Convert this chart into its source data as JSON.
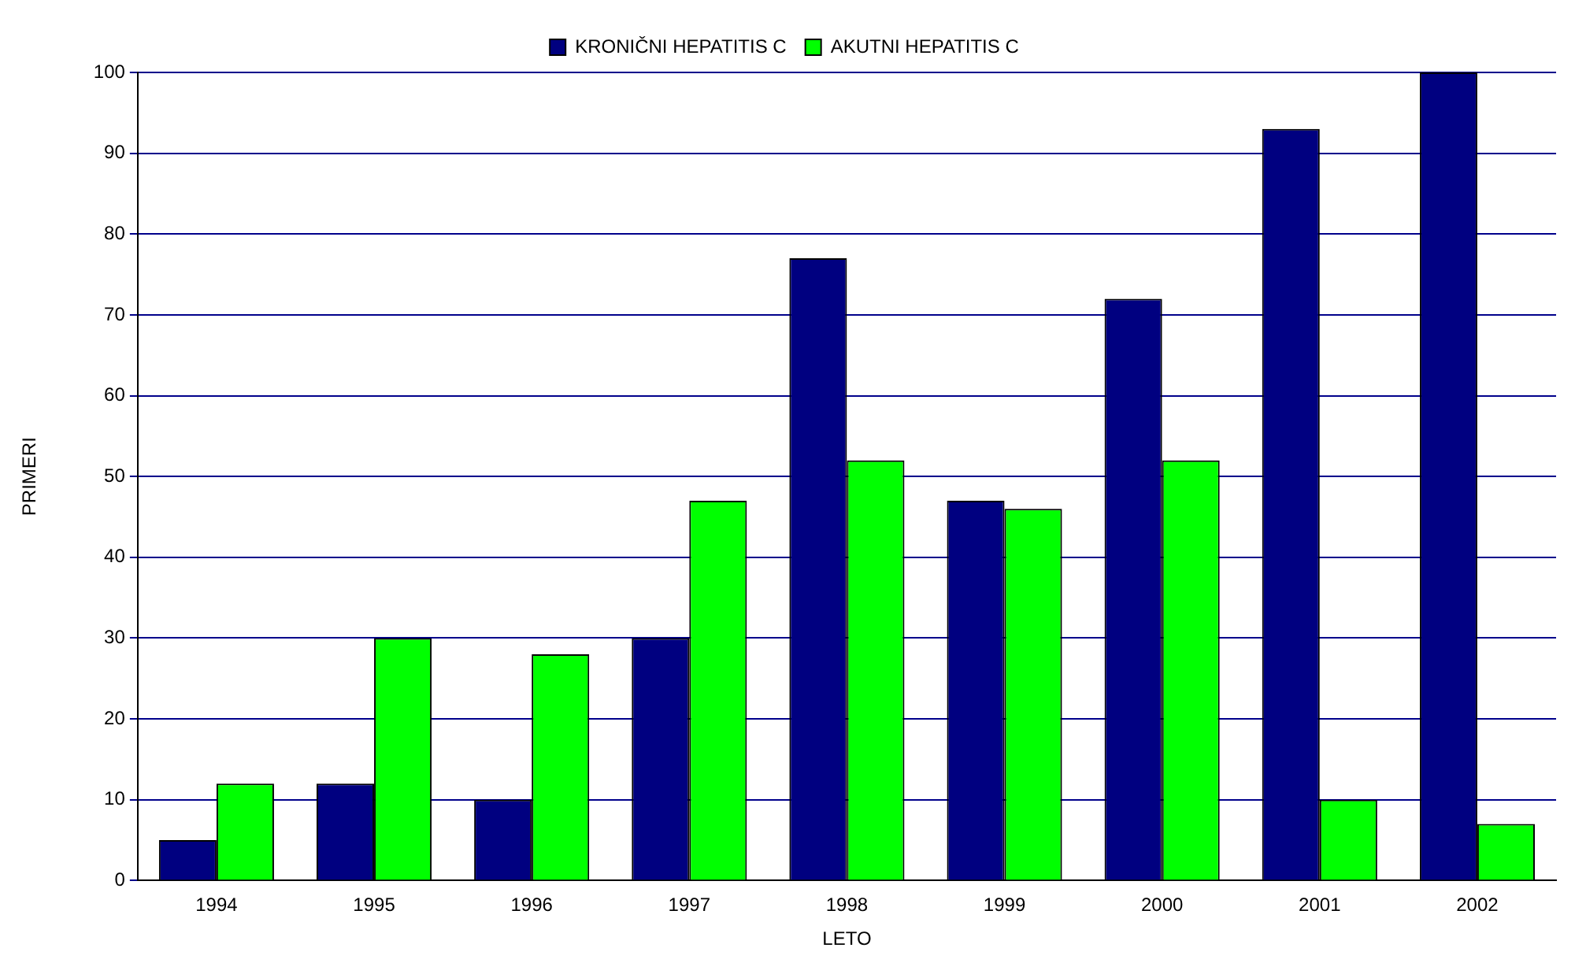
{
  "chart_data": {
    "type": "bar",
    "xlabel": "LETO",
    "ylabel": "PRIMERI",
    "categories": [
      "1994",
      "1995",
      "1996",
      "1997",
      "1998",
      "1999",
      "2000",
      "2001",
      "2002"
    ],
    "series": [
      {
        "name": "KRONIČNI HEPATITIS C",
        "color": "#000080",
        "values": [
          5,
          12,
          10,
          30,
          77,
          47,
          72,
          93,
          100
        ]
      },
      {
        "name": "AKUTNI HEPATITIS C",
        "color": "#00ff00",
        "values": [
          12,
          30,
          28,
          47,
          52,
          46,
          52,
          10,
          7
        ]
      }
    ],
    "ylim": [
      0,
      100
    ],
    "yticks": [
      0,
      10,
      20,
      30,
      40,
      50,
      60,
      70,
      80,
      90,
      100
    ],
    "grid": "y",
    "legend": "top"
  }
}
